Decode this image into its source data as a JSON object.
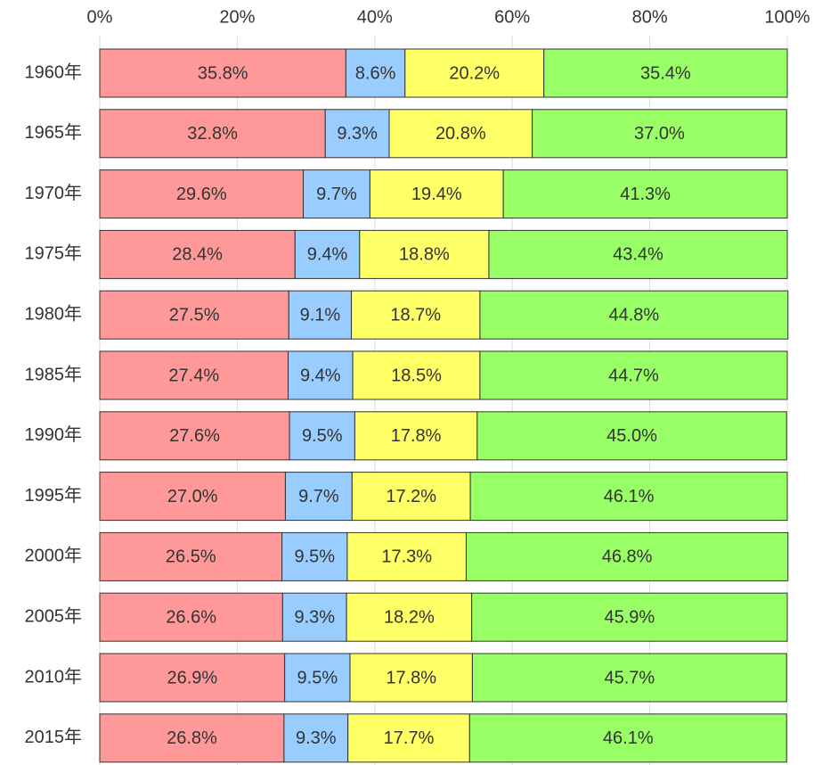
{
  "chart_data": {
    "type": "stacked-bar-horizontal",
    "categories": [
      "1960年",
      "1965年",
      "1970年",
      "1975年",
      "1980年",
      "1985年",
      "1990年",
      "1995年",
      "2000年",
      "2005年",
      "2010年",
      "2015年"
    ],
    "series": [
      {
        "color": "#ff9999",
        "values": [
          35.8,
          32.8,
          29.6,
          28.4,
          27.5,
          27.4,
          27.6,
          27.0,
          26.5,
          26.6,
          26.9,
          26.8
        ],
        "value_labels": [
          "35.8%",
          "32.8%",
          "29.6%",
          "28.4%",
          "27.5%",
          "27.4%",
          "27.6%",
          "27.0%",
          "26.5%",
          "26.6%",
          "26.9%",
          "26.8%"
        ]
      },
      {
        "color": "#99ccff",
        "values": [
          8.6,
          9.3,
          9.7,
          9.4,
          9.1,
          9.4,
          9.5,
          9.7,
          9.5,
          9.3,
          9.5,
          9.3
        ],
        "value_labels": [
          "8.6%",
          "9.3%",
          "9.7%",
          "9.4%",
          "9.1%",
          "9.4%",
          "9.5%",
          "9.7%",
          "9.5%",
          "9.3%",
          "9.5%",
          "9.3%"
        ]
      },
      {
        "color": "#ffff66",
        "values": [
          20.2,
          20.8,
          19.4,
          18.8,
          18.7,
          18.5,
          17.8,
          17.2,
          17.3,
          18.2,
          17.8,
          17.7
        ],
        "value_labels": [
          "20.2%",
          "20.8%",
          "19.4%",
          "18.8%",
          "18.7%",
          "18.5%",
          "17.8%",
          "17.2%",
          "17.3%",
          "18.2%",
          "17.8%",
          "17.7%"
        ]
      },
      {
        "color": "#99ff66",
        "values": [
          35.4,
          37.0,
          41.3,
          43.4,
          44.8,
          44.7,
          45.0,
          46.1,
          46.8,
          45.9,
          45.7,
          46.1
        ],
        "value_labels": [
          "35.4%",
          "37.0%",
          "41.3%",
          "43.4%",
          "44.8%",
          "44.7%",
          "45.0%",
          "46.1%",
          "46.8%",
          "45.9%",
          "45.7%",
          "46.1%"
        ]
      }
    ],
    "xlim": [
      0,
      100
    ],
    "xticks": [
      {
        "value": 0,
        "label": "0%"
      },
      {
        "value": 20,
        "label": "20%"
      },
      {
        "value": 40,
        "label": "40%"
      },
      {
        "value": 60,
        "label": "60%"
      },
      {
        "value": 80,
        "label": "80%"
      },
      {
        "value": 100,
        "label": "100%"
      }
    ],
    "grid": true
  }
}
